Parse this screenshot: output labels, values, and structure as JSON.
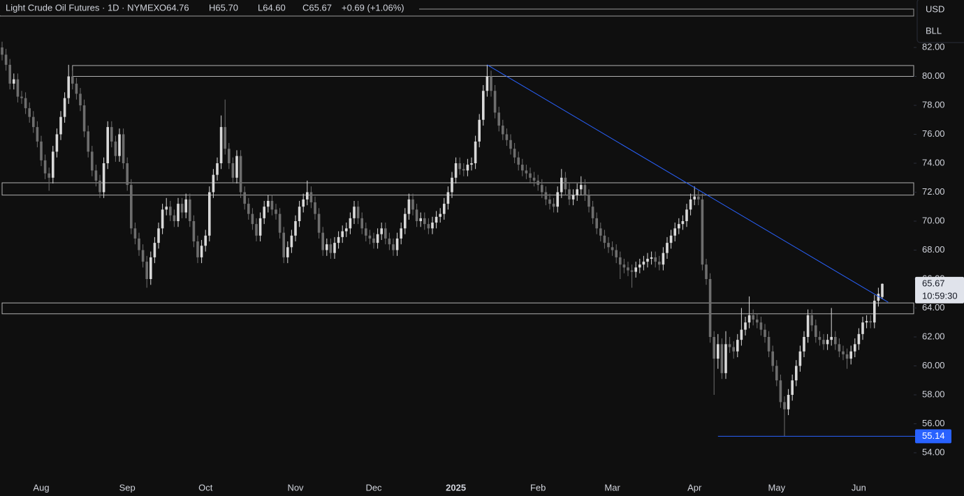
{
  "chart_data": {
    "type": "candlestick",
    "title": "Light Crude Oil Futures · 1D · NYMEX",
    "header_fields": [
      "O64.76",
      "H65.70",
      "L64.60",
      "C65.67",
      "+0.69 (+1.06%)"
    ],
    "currency_buttons": [
      "USD",
      "BLL"
    ],
    "countdown": "10:59:30",
    "up_color": "#d9d9d9",
    "down_color": "#6e6e6e",
    "line_color": "#2962ff",
    "ylim": [
      53,
      83.2
    ],
    "yticks": [
      {
        "value": 54,
        "label": "54.00"
      },
      {
        "value": 56,
        "label": "56.00"
      },
      {
        "value": 58,
        "label": "58.00"
      },
      {
        "value": 60,
        "label": "60.00"
      },
      {
        "value": 62,
        "label": "62.00"
      },
      {
        "value": 64,
        "label": "64.00"
      },
      {
        "value": 66,
        "label": "66.00"
      },
      {
        "value": 68,
        "label": "68.00"
      },
      {
        "value": 70,
        "label": "70.00"
      },
      {
        "value": 72,
        "label": "72.00"
      },
      {
        "value": 74,
        "label": "74.00"
      },
      {
        "value": 76,
        "label": "76.00"
      },
      {
        "value": 78,
        "label": "78.00"
      },
      {
        "value": 80,
        "label": "80.00"
      },
      {
        "value": 82,
        "label": "82.00"
      }
    ],
    "xticks": [
      {
        "value": 10,
        "label": "Aug"
      },
      {
        "value": 32,
        "label": "Sep"
      },
      {
        "value": 52,
        "label": "Oct"
      },
      {
        "value": 75,
        "label": "Nov"
      },
      {
        "value": 95,
        "label": "Dec"
      },
      {
        "value": 116,
        "label": "2025"
      },
      {
        "value": 137,
        "label": "Feb"
      },
      {
        "value": 156,
        "label": "Mar"
      },
      {
        "value": 177,
        "label": "Apr"
      },
      {
        "value": 198,
        "label": "May"
      },
      {
        "value": 219,
        "label": "Jun"
      }
    ],
    "zones": [
      {
        "from": 18,
        "low": 80.0,
        "high": 80.75
      },
      {
        "from": 0,
        "low": 71.8,
        "high": 72.65
      },
      {
        "from": 0,
        "low": 63.6,
        "high": 64.35
      }
    ],
    "trendline": {
      "from": [
        124,
        80.8
      ],
      "to": [
        226.5,
        64.4
      ]
    },
    "support": {
      "from": 183,
      "level": 55.14
    },
    "candles": [
      [
        82.0,
        82.4,
        81.1,
        81.5
      ],
      [
        81.5,
        81.9,
        80.4,
        80.8
      ],
      [
        80.8,
        81.2,
        79.1,
        79.5
      ],
      [
        79.5,
        80.2,
        79.1,
        79.8
      ],
      [
        79.8,
        80.2,
        78.2,
        78.6
      ],
      [
        78.6,
        79.0,
        78.1,
        78.5
      ],
      [
        78.5,
        78.9,
        77.4,
        77.8
      ],
      [
        77.8,
        78.2,
        76.8,
        77.2
      ],
      [
        77.2,
        77.6,
        76.1,
        76.5
      ],
      [
        76.5,
        76.9,
        75.1,
        75.5
      ],
      [
        75.5,
        75.9,
        73.8,
        74.2
      ],
      [
        74.2,
        74.6,
        72.9,
        73.3
      ],
      [
        73.3,
        73.7,
        72.1,
        73.0
      ],
      [
        73.0,
        75.2,
        72.6,
        74.8
      ],
      [
        74.8,
        76.4,
        74.4,
        76.0
      ],
      [
        76.0,
        77.6,
        75.6,
        77.2
      ],
      [
        77.2,
        78.9,
        76.8,
        78.5
      ],
      [
        78.5,
        80.8,
        78.1,
        80.0
      ],
      [
        80.0,
        80.4,
        79.1,
        79.5
      ],
      [
        79.5,
        79.9,
        78.4,
        78.8
      ],
      [
        78.8,
        79.2,
        77.6,
        78.0
      ],
      [
        78.0,
        78.4,
        75.8,
        76.2
      ],
      [
        76.2,
        76.6,
        74.4,
        74.8
      ],
      [
        74.8,
        75.2,
        73.1,
        73.5
      ],
      [
        73.5,
        73.9,
        72.4,
        72.8
      ],
      [
        72.8,
        73.2,
        71.6,
        72.0
      ],
      [
        72.0,
        74.4,
        71.6,
        74.0
      ],
      [
        74.0,
        76.9,
        73.6,
        76.5
      ],
      [
        76.5,
        76.9,
        75.1,
        75.5
      ],
      [
        75.5,
        75.9,
        74.1,
        74.5
      ],
      [
        74.5,
        76.4,
        74.1,
        76.0
      ],
      [
        76.0,
        76.4,
        73.6,
        74.0
      ],
      [
        74.0,
        74.4,
        72.1,
        72.5
      ],
      [
        72.5,
        72.9,
        69.1,
        69.5
      ],
      [
        69.5,
        69.9,
        68.4,
        68.8
      ],
      [
        68.8,
        69.2,
        67.6,
        68.0
      ],
      [
        68.0,
        68.4,
        66.8,
        67.2
      ],
      [
        67.2,
        67.6,
        65.4,
        66.0
      ],
      [
        66.0,
        67.9,
        65.6,
        67.5
      ],
      [
        67.5,
        68.9,
        67.1,
        68.5
      ],
      [
        68.5,
        69.9,
        68.1,
        69.5
      ],
      [
        69.5,
        71.2,
        69.1,
        70.8
      ],
      [
        70.8,
        71.6,
        70.4,
        71.0
      ],
      [
        71.0,
        71.4,
        70.0,
        70.4
      ],
      [
        70.4,
        70.8,
        69.6,
        70.0
      ],
      [
        70.0,
        71.6,
        69.6,
        71.2
      ],
      [
        71.2,
        71.6,
        70.2,
        70.6
      ],
      [
        70.6,
        71.9,
        70.2,
        71.5
      ],
      [
        71.5,
        71.9,
        69.6,
        70.0
      ],
      [
        70.0,
        70.4,
        68.2,
        68.6
      ],
      [
        68.6,
        69.0,
        67.1,
        67.5
      ],
      [
        67.5,
        68.7,
        67.1,
        68.3
      ],
      [
        68.3,
        69.4,
        67.9,
        69.0
      ],
      [
        69.0,
        72.4,
        68.6,
        72.0
      ],
      [
        72.0,
        73.6,
        71.6,
        73.2
      ],
      [
        73.2,
        74.4,
        72.8,
        74.0
      ],
      [
        74.0,
        77.3,
        73.6,
        76.5
      ],
      [
        76.5,
        78.4,
        74.6,
        75.0
      ],
      [
        75.0,
        75.4,
        73.6,
        74.0
      ],
      [
        74.0,
        74.4,
        72.6,
        73.0
      ],
      [
        73.0,
        74.9,
        72.6,
        74.5
      ],
      [
        74.5,
        74.9,
        71.6,
        72.0
      ],
      [
        72.0,
        72.4,
        70.8,
        71.2
      ],
      [
        71.2,
        71.6,
        70.1,
        70.5
      ],
      [
        70.5,
        70.9,
        69.4,
        69.8
      ],
      [
        69.8,
        70.2,
        68.6,
        69.0
      ],
      [
        69.0,
        70.6,
        68.6,
        70.2
      ],
      [
        70.2,
        71.4,
        69.8,
        71.0
      ],
      [
        71.0,
        71.8,
        70.6,
        71.4
      ],
      [
        71.4,
        71.8,
        70.4,
        70.8
      ],
      [
        70.8,
        71.2,
        70.1,
        70.5
      ],
      [
        70.5,
        70.9,
        68.8,
        69.2
      ],
      [
        69.2,
        69.6,
        67.1,
        67.5
      ],
      [
        67.5,
        68.6,
        67.1,
        68.2
      ],
      [
        68.2,
        69.4,
        67.8,
        69.0
      ],
      [
        69.0,
        70.4,
        68.6,
        70.0
      ],
      [
        70.0,
        71.4,
        69.6,
        71.0
      ],
      [
        71.0,
        71.9,
        70.6,
        71.5
      ],
      [
        71.5,
        72.8,
        71.1,
        72.0
      ],
      [
        72.0,
        72.4,
        70.9,
        71.3
      ],
      [
        71.3,
        71.7,
        70.1,
        70.5
      ],
      [
        70.5,
        70.9,
        68.8,
        69.2
      ],
      [
        69.2,
        69.6,
        67.6,
        68.0
      ],
      [
        68.0,
        68.8,
        67.6,
        68.4
      ],
      [
        68.4,
        68.8,
        67.4,
        67.8
      ],
      [
        67.8,
        68.9,
        67.4,
        68.5
      ],
      [
        68.5,
        69.3,
        68.1,
        68.9
      ],
      [
        68.9,
        69.7,
        68.5,
        69.3
      ],
      [
        69.3,
        69.9,
        68.9,
        69.5
      ],
      [
        69.5,
        70.6,
        69.1,
        70.2
      ],
      [
        70.2,
        71.4,
        69.8,
        71.0
      ],
      [
        71.0,
        71.4,
        69.8,
        70.2
      ],
      [
        70.2,
        70.6,
        69.1,
        69.5
      ],
      [
        69.5,
        69.9,
        68.6,
        69.0
      ],
      [
        69.0,
        69.4,
        68.4,
        68.8
      ],
      [
        68.8,
        69.2,
        68.1,
        68.5
      ],
      [
        68.5,
        69.5,
        68.1,
        69.1
      ],
      [
        69.1,
        69.9,
        68.7,
        69.5
      ],
      [
        69.5,
        69.9,
        68.4,
        68.8
      ],
      [
        68.8,
        69.2,
        68.0,
        68.4
      ],
      [
        68.4,
        68.8,
        67.6,
        68.0
      ],
      [
        68.0,
        69.2,
        67.6,
        68.8
      ],
      [
        68.8,
        69.9,
        68.4,
        69.5
      ],
      [
        69.5,
        70.9,
        69.1,
        70.5
      ],
      [
        70.5,
        71.9,
        70.1,
        71.5
      ],
      [
        71.5,
        71.9,
        70.4,
        70.8
      ],
      [
        70.8,
        71.2,
        69.6,
        70.0
      ],
      [
        70.0,
        70.6,
        69.6,
        70.2
      ],
      [
        70.2,
        70.6,
        69.4,
        69.8
      ],
      [
        69.8,
        70.2,
        69.1,
        69.5
      ],
      [
        69.5,
        70.3,
        69.1,
        69.9
      ],
      [
        69.9,
        70.7,
        69.5,
        70.3
      ],
      [
        70.3,
        70.9,
        69.9,
        70.5
      ],
      [
        70.5,
        71.6,
        70.1,
        71.2
      ],
      [
        71.2,
        72.4,
        70.8,
        72.0
      ],
      [
        72.0,
        73.4,
        71.6,
        73.0
      ],
      [
        73.0,
        74.4,
        72.6,
        74.0
      ],
      [
        74.0,
        74.4,
        73.2,
        73.6
      ],
      [
        73.6,
        74.0,
        73.1,
        73.5
      ],
      [
        73.5,
        74.3,
        73.1,
        73.9
      ],
      [
        73.9,
        74.4,
        73.5,
        74.0
      ],
      [
        74.0,
        75.9,
        73.6,
        75.5
      ],
      [
        75.5,
        77.4,
        75.1,
        77.0
      ],
      [
        77.0,
        79.4,
        76.6,
        79.0
      ],
      [
        79.0,
        80.8,
        78.6,
        80.0
      ],
      [
        80.0,
        80.4,
        78.6,
        79.0
      ],
      [
        79.0,
        79.4,
        77.1,
        77.5
      ],
      [
        77.5,
        77.9,
        76.2,
        76.6
      ],
      [
        76.6,
        77.0,
        75.6,
        76.0
      ],
      [
        76.0,
        76.4,
        75.2,
        75.6
      ],
      [
        75.6,
        76.0,
        74.6,
        75.0
      ],
      [
        75.0,
        75.4,
        74.0,
        74.4
      ],
      [
        74.4,
        74.8,
        73.5,
        73.9
      ],
      [
        73.9,
        74.3,
        73.1,
        73.5
      ],
      [
        73.5,
        73.9,
        72.9,
        73.3
      ],
      [
        73.3,
        73.7,
        72.6,
        73.0
      ],
      [
        73.0,
        73.4,
        72.4,
        72.8
      ],
      [
        72.8,
        73.2,
        72.1,
        72.5
      ],
      [
        72.5,
        72.9,
        71.6,
        72.0
      ],
      [
        72.0,
        72.4,
        71.1,
        71.5
      ],
      [
        71.5,
        71.9,
        70.8,
        71.2
      ],
      [
        71.2,
        71.6,
        70.6,
        71.0
      ],
      [
        71.0,
        72.4,
        70.6,
        72.0
      ],
      [
        72.0,
        73.6,
        71.6,
        73.0
      ],
      [
        73.0,
        73.4,
        71.8,
        72.2
      ],
      [
        72.2,
        72.6,
        71.1,
        71.5
      ],
      [
        71.5,
        72.2,
        71.1,
        71.8
      ],
      [
        71.8,
        72.6,
        71.4,
        72.2
      ],
      [
        72.2,
        73.1,
        71.8,
        72.5
      ],
      [
        72.5,
        72.9,
        71.4,
        71.8
      ],
      [
        71.8,
        72.2,
        70.6,
        71.0
      ],
      [
        71.0,
        71.4,
        69.8,
        70.2
      ],
      [
        70.2,
        70.6,
        69.1,
        69.5
      ],
      [
        69.5,
        69.9,
        68.6,
        69.0
      ],
      [
        69.0,
        69.4,
        68.1,
        68.5
      ],
      [
        68.5,
        68.9,
        67.8,
        68.2
      ],
      [
        68.2,
        68.6,
        67.6,
        68.0
      ],
      [
        68.0,
        68.4,
        67.1,
        67.5
      ],
      [
        67.5,
        67.9,
        66.0,
        67.0
      ],
      [
        67.0,
        67.4,
        66.4,
        66.8
      ],
      [
        66.8,
        67.2,
        66.2,
        66.6
      ],
      [
        66.6,
        67.0,
        65.4,
        66.5
      ],
      [
        66.5,
        67.2,
        66.1,
        66.8
      ],
      [
        66.8,
        67.4,
        66.4,
        67.0
      ],
      [
        67.0,
        67.6,
        66.6,
        67.2
      ],
      [
        67.2,
        67.8,
        66.8,
        67.4
      ],
      [
        67.4,
        67.9,
        67.0,
        67.5
      ],
      [
        67.5,
        67.9,
        66.8,
        67.2
      ],
      [
        67.2,
        67.6,
        66.6,
        67.0
      ],
      [
        67.0,
        68.2,
        66.6,
        67.8
      ],
      [
        67.8,
        68.9,
        67.4,
        68.5
      ],
      [
        68.5,
        69.4,
        68.1,
        69.0
      ],
      [
        69.0,
        69.9,
        68.6,
        69.5
      ],
      [
        69.5,
        70.2,
        69.1,
        69.8
      ],
      [
        69.8,
        70.4,
        69.4,
        70.0
      ],
      [
        70.0,
        71.2,
        69.6,
        70.8
      ],
      [
        70.8,
        71.9,
        70.4,
        71.5
      ],
      [
        71.5,
        72.4,
        71.1,
        71.7
      ],
      [
        71.7,
        72.1,
        71.1,
        71.5
      ],
      [
        71.5,
        71.9,
        66.6,
        67.0
      ],
      [
        67.0,
        67.4,
        65.6,
        66.0
      ],
      [
        66.0,
        66.4,
        61.6,
        62.0
      ],
      [
        62.0,
        62.4,
        58.0,
        60.5
      ],
      [
        60.5,
        62.2,
        59.8,
        61.5
      ],
      [
        61.5,
        61.9,
        59.1,
        59.5
      ],
      [
        59.5,
        62.4,
        59.1,
        61.5
      ],
      [
        61.5,
        62.0,
        60.9,
        61.3
      ],
      [
        61.3,
        61.7,
        60.5,
        61.0
      ],
      [
        61.0,
        62.2,
        60.6,
        61.8
      ],
      [
        61.8,
        64.0,
        61.4,
        62.5
      ],
      [
        62.5,
        63.4,
        62.1,
        63.0
      ],
      [
        63.0,
        64.8,
        62.6,
        63.5
      ],
      [
        63.5,
        63.9,
        62.8,
        63.2
      ],
      [
        63.2,
        63.6,
        62.6,
        63.0
      ],
      [
        63.0,
        63.4,
        62.1,
        62.5
      ],
      [
        62.5,
        62.9,
        61.6,
        62.0
      ],
      [
        62.0,
        62.4,
        60.6,
        61.0
      ],
      [
        61.0,
        61.4,
        59.6,
        60.0
      ],
      [
        60.0,
        60.4,
        58.6,
        59.0
      ],
      [
        59.0,
        59.4,
        57.1,
        57.5
      ],
      [
        57.5,
        57.9,
        55.14,
        57.0
      ],
      [
        57.0,
        58.4,
        56.6,
        58.0
      ],
      [
        58.0,
        59.4,
        57.6,
        59.0
      ],
      [
        59.0,
        60.4,
        58.6,
        60.0
      ],
      [
        60.0,
        61.4,
        59.6,
        61.0
      ],
      [
        61.0,
        62.4,
        60.6,
        62.0
      ],
      [
        62.0,
        63.9,
        61.6,
        63.5
      ],
      [
        63.5,
        63.9,
        62.4,
        62.8
      ],
      [
        62.8,
        63.2,
        61.6,
        62.0
      ],
      [
        62.0,
        62.4,
        61.4,
        61.8
      ],
      [
        61.8,
        62.2,
        61.1,
        61.5
      ],
      [
        61.5,
        62.2,
        61.1,
        61.8
      ],
      [
        61.8,
        64.0,
        61.4,
        62.0
      ],
      [
        62.0,
        62.4,
        61.1,
        61.5
      ],
      [
        61.5,
        61.9,
        60.6,
        61.0
      ],
      [
        61.0,
        61.4,
        60.4,
        60.8
      ],
      [
        60.8,
        61.2,
        59.8,
        60.5
      ],
      [
        60.5,
        61.4,
        60.1,
        61.0
      ],
      [
        61.0,
        61.9,
        60.6,
        61.5
      ],
      [
        61.5,
        62.6,
        61.1,
        62.2
      ],
      [
        62.2,
        63.4,
        61.8,
        63.0
      ],
      [
        63.0,
        63.5,
        62.6,
        63.1
      ],
      [
        63.1,
        63.5,
        62.6,
        63.0
      ],
      [
        63.0,
        64.9,
        62.6,
        64.5
      ],
      [
        64.5,
        65.4,
        64.1,
        64.98
      ],
      [
        64.76,
        65.7,
        64.6,
        65.67
      ]
    ]
  }
}
